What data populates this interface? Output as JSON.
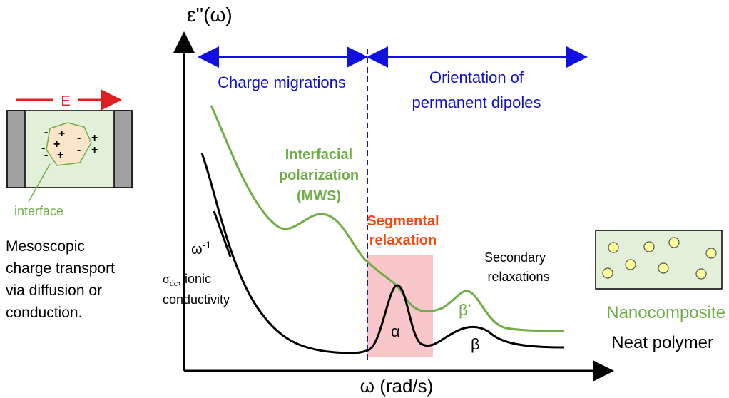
{
  "y_axis_label": "ε''(ω)",
  "x_axis_label": "ω (rad/s)",
  "regions": {
    "left": "Charge migrations",
    "right": [
      "Orientation of",
      "permanent dipoles"
    ]
  },
  "annotations": {
    "interfacial": [
      "Interfacial",
      "polarization",
      "(MWS)"
    ],
    "segmental": [
      "Segmental",
      "relaxation"
    ],
    "secondary": [
      "Secondary",
      "relaxations"
    ],
    "omega_power": {
      "base": "ω",
      "sup": "-1"
    },
    "sigma": {
      "base": "σ",
      "sub": "dc",
      "rest": ", ionic"
    },
    "conductivity": "conductivity",
    "alpha": "α",
    "beta": "β",
    "beta_prime": "β’"
  },
  "legend": {
    "nanocomposite": "Nanocomposite",
    "neat": "Neat polymer"
  },
  "left_diagram": {
    "field": "E",
    "interface": "interface",
    "charges": [
      "-",
      "+",
      "-",
      "+",
      "-",
      "+",
      "-",
      "+",
      "-",
      "+"
    ],
    "caption": [
      "Mesoscopic",
      "charge transport",
      "via diffusion or",
      "conduction."
    ]
  }
}
